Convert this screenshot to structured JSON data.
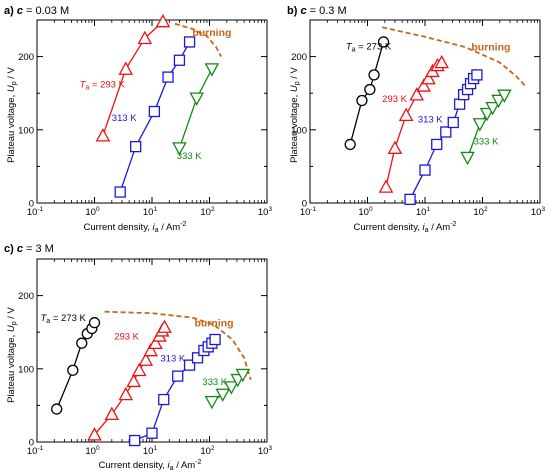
{
  "figure": {
    "colors": {
      "293K": "#ee1111",
      "313K": "#1a1ad6",
      "333K": "#138a13",
      "273K": "#000000",
      "burning": "#c8651a"
    }
  },
  "chart_data": [
    {
      "type": "line",
      "panel_label": "a)",
      "panel_var": "c",
      "panel_value": " = 0.03 M",
      "xlabel_text": "Current density, ",
      "xlabel_var": "i",
      "xlabel_sub": "a",
      "xlabel_unit": " / Am",
      "xlabel_sup": "-2",
      "ylabel_text": "Plateau voltage, ",
      "ylabel_var": "U",
      "ylabel_sub": "p",
      "ylabel_unit": " / V",
      "xscale": "log",
      "xlim": [
        0.1,
        1000
      ],
      "ylim": [
        0,
        250
      ],
      "xticks": [
        0.1,
        1,
        10,
        100,
        1000
      ],
      "xtick_labels": [
        "10",
        "10",
        "10",
        "10",
        "10"
      ],
      "xtick_exps": [
        "-1",
        "0",
        "1",
        "2",
        "3"
      ],
      "yticks": [
        0,
        100,
        200
      ],
      "ytick_labels": [
        "0",
        "100",
        "200"
      ],
      "series": [
        {
          "key": "293K",
          "marker": "triangle-up",
          "label_main": "T",
          "label_sub": "a",
          "label_rest": " = 293 K",
          "label_pos": [
            0.55,
            158
          ],
          "x": [
            1.4,
            3.5,
            7.5,
            15.5
          ],
          "y": [
            92,
            183,
            225,
            248
          ]
        },
        {
          "key": "313K",
          "marker": "square",
          "label_main": "313 K",
          "label_pos": [
            2.0,
            112
          ],
          "x": [
            2.8,
            5.2,
            11.0,
            19.0,
            30.0,
            45.0
          ],
          "y": [
            15,
            77,
            125,
            172,
            195,
            220
          ]
        },
        {
          "key": "333K",
          "marker": "triangle-down",
          "label_main": "333 K",
          "label_pos": [
            27.0,
            60
          ],
          "x": [
            30.0,
            60.0,
            110.0
          ],
          "y": [
            75,
            143,
            183
          ]
        }
      ],
      "burning_line": {
        "label": "burning",
        "label_pos": [
          110,
          228
        ],
        "x": [
          25,
          50,
          90,
          130,
          160
        ],
        "y": [
          245,
          238,
          228,
          213,
          200
        ]
      }
    },
    {
      "type": "line",
      "panel_label": "b)",
      "panel_var": "c",
      "panel_value": " = 0.3 M",
      "xlabel_text": "Current density, ",
      "xlabel_var": "i",
      "xlabel_sub": "a",
      "xlabel_unit": " / Am",
      "xlabel_sup": "-2",
      "ylabel_text": "Plateau voltage, ",
      "ylabel_var": "U",
      "ylabel_sub": "p",
      "ylabel_unit": " / V",
      "xscale": "log",
      "xlim": [
        0.1,
        1000
      ],
      "ylim": [
        0,
        250
      ],
      "xticks": [
        0.1,
        1,
        10,
        100,
        1000
      ],
      "xtick_labels": [
        "10",
        "10",
        "10",
        "10",
        "10"
      ],
      "xtick_exps": [
        "-1",
        "0",
        "1",
        "2",
        "3"
      ],
      "yticks": [
        0,
        100,
        200
      ],
      "ytick_labels": [
        "0",
        "100",
        "200"
      ],
      "series": [
        {
          "key": "273K",
          "marker": "circle",
          "label_main": "T",
          "label_sub": "a",
          "label_rest": " = 273 K",
          "label_pos": [
            0.42,
            210
          ],
          "x": [
            0.5,
            0.8,
            1.1,
            1.3,
            1.9
          ],
          "y": [
            80,
            140,
            155,
            175,
            220
          ]
        },
        {
          "key": "293K",
          "marker": "triangle-up",
          "label_main": "293 K",
          "label_pos": [
            1.8,
            138
          ],
          "x": [
            2.1,
            3.0,
            4.7,
            7.2,
            9.5,
            11.5,
            13.5,
            16.5,
            19.5
          ],
          "y": [
            22,
            75,
            120,
            148,
            160,
            170,
            180,
            188,
            192
          ]
        },
        {
          "key": "313K",
          "marker": "square",
          "label_main": "313 K",
          "label_pos": [
            7.5,
            110
          ],
          "x": [
            5.5,
            10.0,
            16.0,
            23.0,
            31.0,
            40.0,
            47.0,
            55.0,
            62.0,
            70.0,
            80.0
          ],
          "y": [
            5,
            45,
            80,
            97,
            110,
            135,
            148,
            155,
            163,
            170,
            175
          ]
        },
        {
          "key": "333K",
          "marker": "triangle-down",
          "label_main": "333 K",
          "label_pos": [
            70.0,
            80
          ],
          "x": [
            55.0,
            90.0,
            120.0,
            150.0,
            190.0,
            240.0
          ],
          "y": [
            62,
            108,
            122,
            130,
            140,
            147
          ]
        }
      ],
      "burning_line": {
        "label": "burning",
        "label_pos": [
          140,
          208
        ],
        "x": [
          1.8,
          10,
          50,
          200,
          400,
          550
        ],
        "y": [
          240,
          227,
          213,
          192,
          172,
          160
        ]
      }
    },
    {
      "type": "line",
      "panel_label": "c)",
      "panel_var": "c",
      "panel_value": " = 3 M",
      "xlabel_text": "Current density, ",
      "xlabel_var": "i",
      "xlabel_sub": "a",
      "xlabel_unit": " / Am",
      "xlabel_sup": "-2",
      "ylabel_text": "Plateau voltage, ",
      "ylabel_var": "U",
      "ylabel_sub": "p",
      "ylabel_unit": " / V",
      "xscale": "log",
      "xlim": [
        0.1,
        1000
      ],
      "ylim": [
        0,
        250
      ],
      "xticks": [
        0.1,
        1,
        10,
        100,
        1000
      ],
      "xtick_labels": [
        "10",
        "10",
        "10",
        "10",
        "10"
      ],
      "xtick_exps": [
        "-1",
        "0",
        "1",
        "2",
        "3"
      ],
      "yticks": [
        0,
        100,
        200
      ],
      "ytick_labels": [
        "0",
        "100",
        "200"
      ],
      "series": [
        {
          "key": "273K",
          "marker": "circle",
          "label_main": "T",
          "label_sub": "a",
          "label_rest": " = 273 K",
          "label_pos": [
            0.115,
            165
          ],
          "x": [
            0.22,
            0.42,
            0.6,
            0.75,
            0.9,
            1.0
          ],
          "y": [
            45,
            98,
            135,
            148,
            155,
            163
          ]
        },
        {
          "key": "293K",
          "marker": "triangle-up",
          "label_main": "293 K",
          "label_pos": [
            2.2,
            140
          ],
          "x": [
            1.0,
            2.0,
            3.5,
            4.8,
            6.0,
            7.8,
            9.5,
            11.5,
            13.5,
            15.0,
            16.5
          ],
          "y": [
            10,
            38,
            65,
            83,
            98,
            112,
            125,
            135,
            145,
            152,
            157
          ]
        },
        {
          "key": "313K",
          "marker": "square",
          "label_main": "313 K",
          "label_pos": [
            14.0,
            110
          ],
          "x": [
            5.0,
            10.0,
            16.0,
            28.0,
            45.0,
            62.0,
            80.0,
            95.0,
            110.0,
            125.0
          ],
          "y": [
            2,
            12,
            58,
            90,
            105,
            115,
            125,
            130,
            135,
            140
          ]
        },
        {
          "key": "333K",
          "marker": "triangle-down",
          "label_main": "333 K",
          "label_pos": [
            75.0,
            78
          ],
          "x": [
            110.0,
            170.0,
            240.0,
            310.0,
            380.0
          ],
          "y": [
            55,
            65,
            75,
            85,
            92
          ]
        }
      ],
      "burning_line": {
        "label": "burning",
        "label_pos": [
          120,
          158
        ],
        "x": [
          1.5,
          10,
          50,
          120,
          250,
          400,
          520
        ],
        "y": [
          178,
          176,
          170,
          160,
          140,
          115,
          85
        ]
      }
    }
  ]
}
